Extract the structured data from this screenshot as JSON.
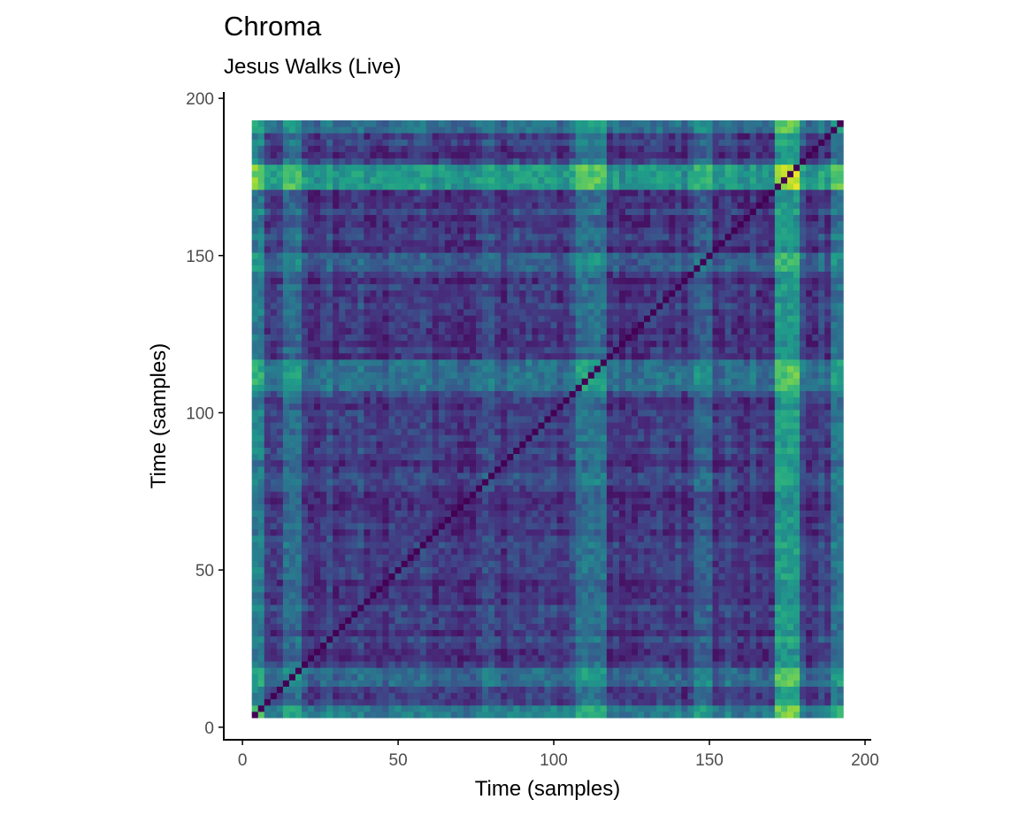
{
  "chart_data": {
    "type": "heatmap",
    "title": "Chroma",
    "subtitle": "Jesus Walks (Live)",
    "xlabel": "Time (samples)",
    "ylabel": "Time (samples)",
    "xlim": [
      -6,
      202
    ],
    "ylim": [
      -4,
      202
    ],
    "xticks": [
      0,
      50,
      100,
      150,
      200
    ],
    "yticks": [
      0,
      50,
      100,
      150,
      200
    ],
    "sample_range": [
      4,
      192
    ],
    "grid": false,
    "legend": "none",
    "colormap": "viridis",
    "colors": {
      "viridis_stops": [
        "#440154",
        "#482878",
        "#3e4989",
        "#31688e",
        "#26828e",
        "#1f9e89",
        "#35b779",
        "#6ece58",
        "#b5de2b",
        "#fde725"
      ],
      "axis": "#000000",
      "tick_label": "#4d4d4d",
      "background": "#ffffff"
    }
  }
}
